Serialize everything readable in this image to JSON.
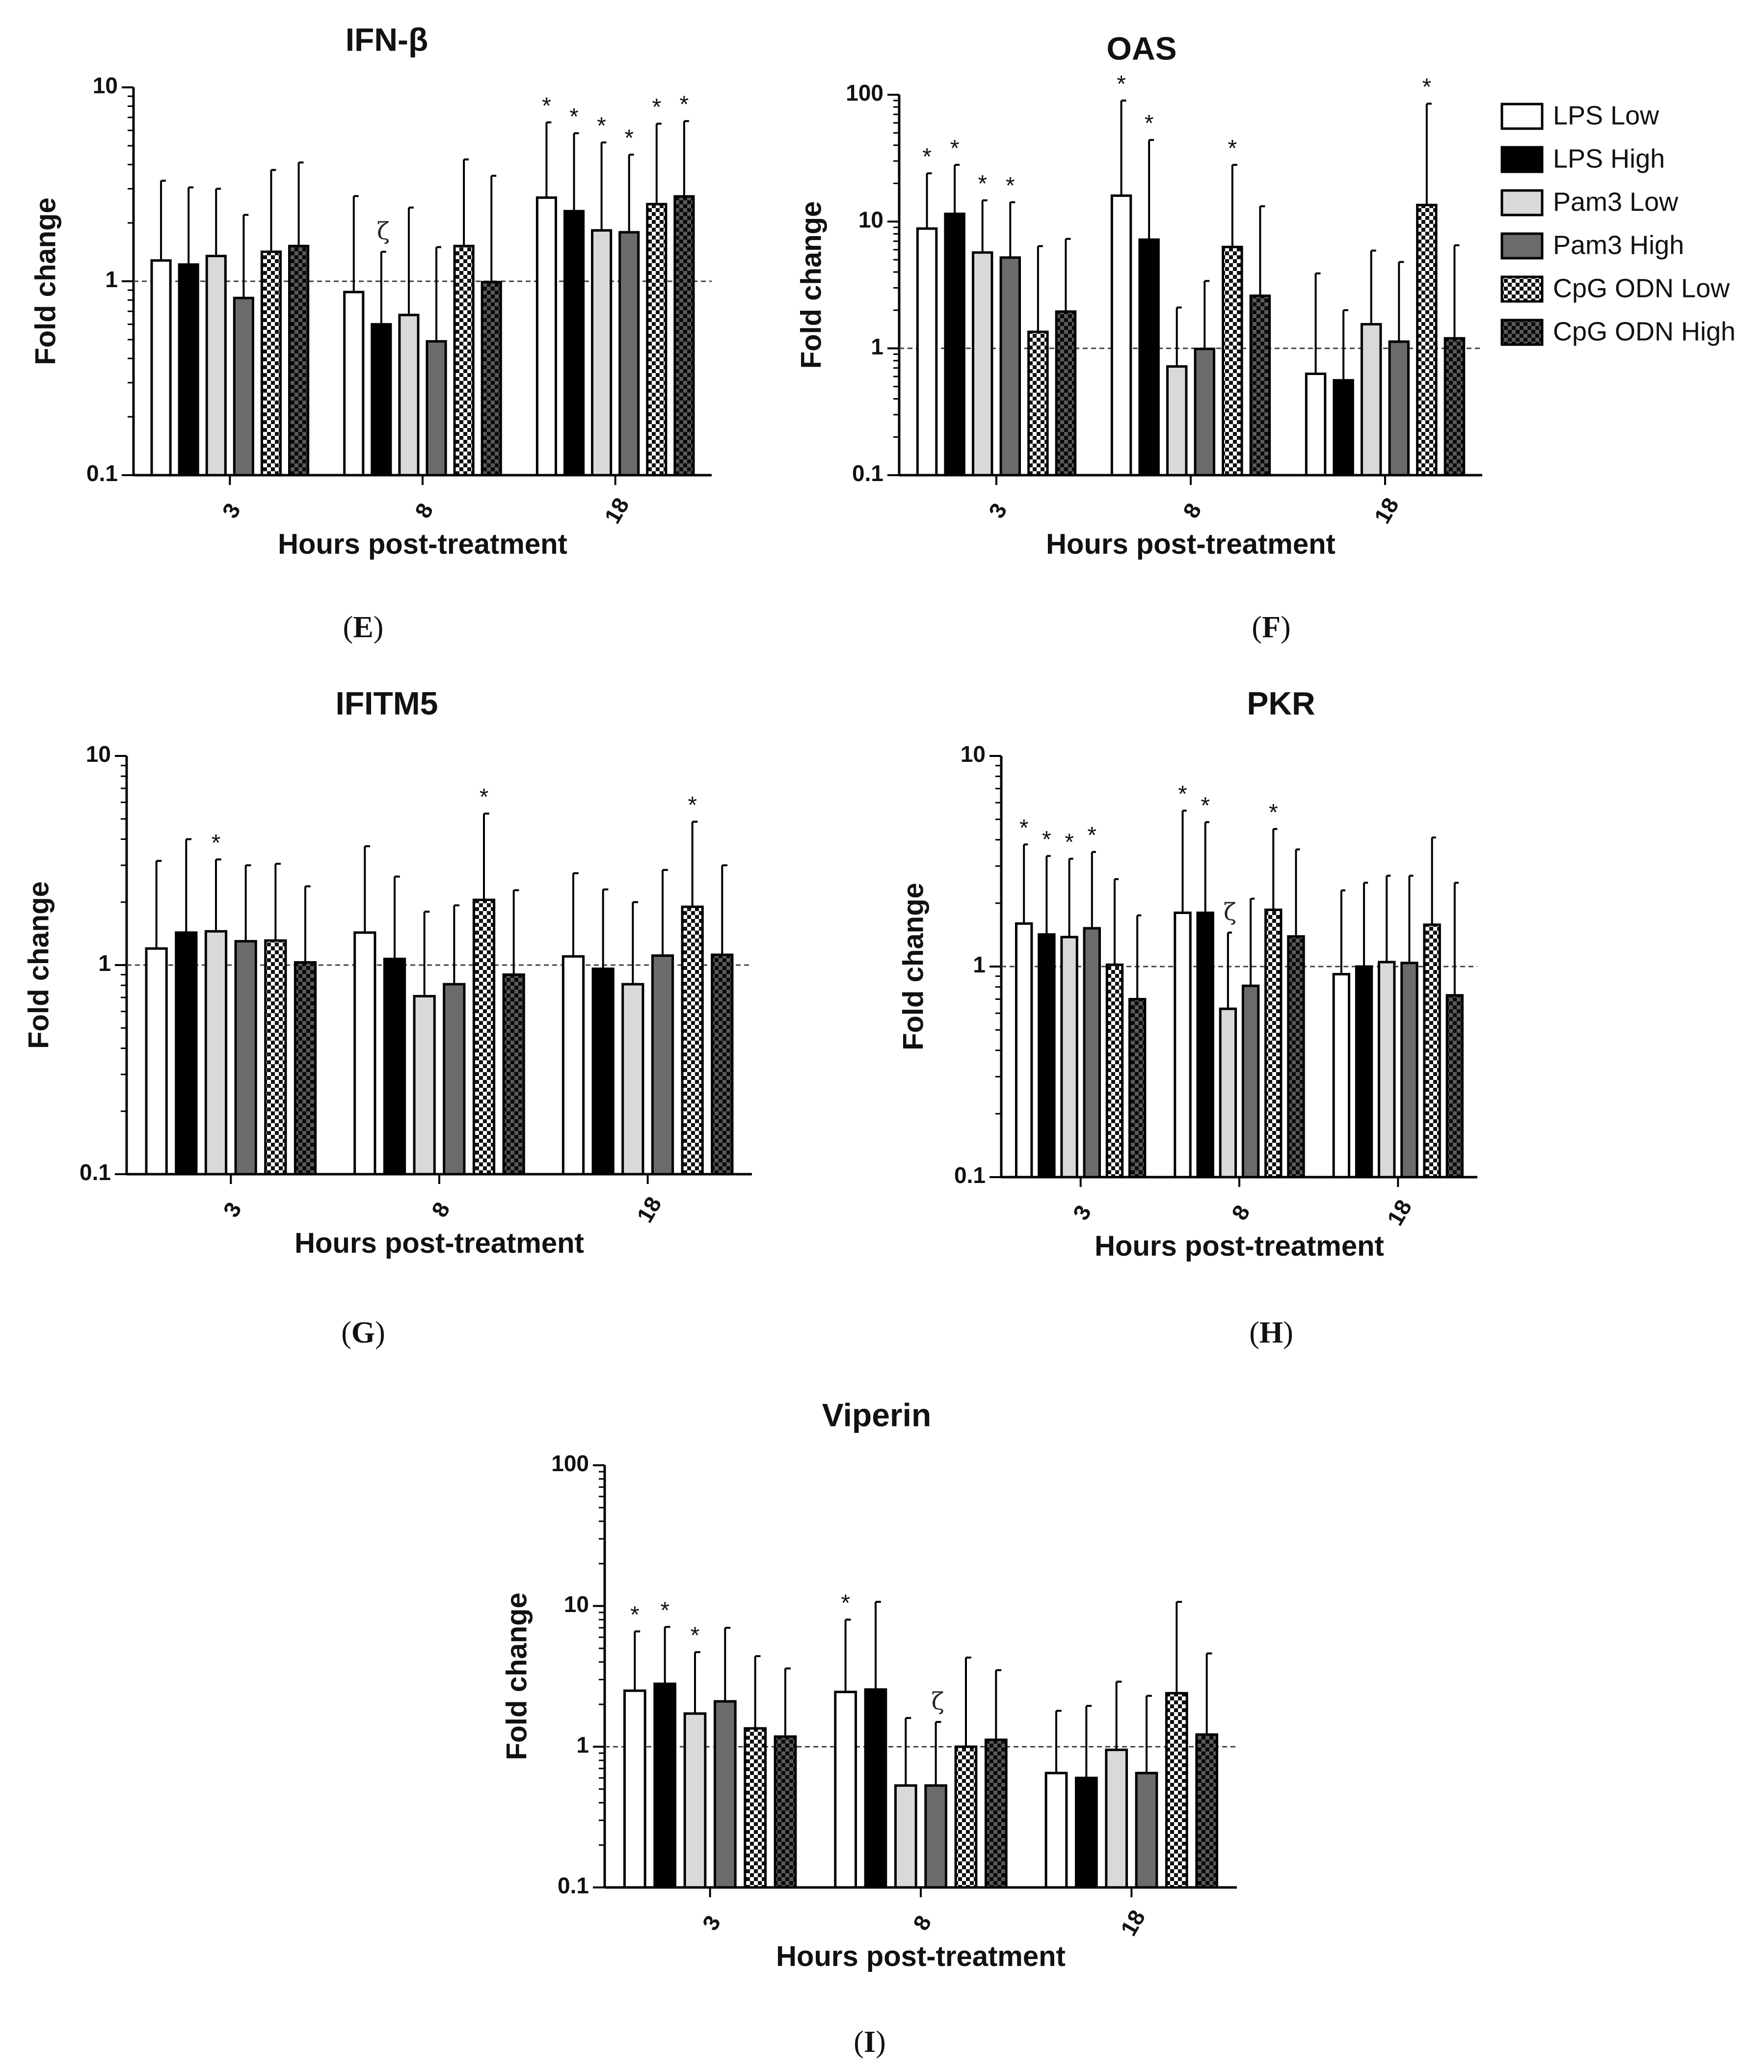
{
  "chart_data": [
    {
      "panel": "E",
      "title": "IFN-β",
      "type": "bar",
      "yscale": "log",
      "ylim": [
        0.1,
        10
      ],
      "yticks": [
        "0.1",
        "1",
        "10"
      ],
      "xlabel": "Hours post-treatment",
      "ylabel": "Fold change",
      "categories": [
        "3",
        "8",
        "18"
      ],
      "series": [
        {
          "name": "LPS Low",
          "values": [
            1.28,
            0.88,
            2.7
          ],
          "errors": [
            3.3,
            2.75,
            6.6
          ],
          "stars": [
            false,
            false,
            true
          ],
          "zeta": [
            false,
            false,
            false
          ]
        },
        {
          "name": "LPS High",
          "values": [
            1.22,
            0.6,
            2.3
          ],
          "errors": [
            3.05,
            1.42,
            5.8
          ],
          "stars": [
            false,
            false,
            true
          ],
          "zeta": [
            false,
            true,
            false
          ]
        },
        {
          "name": "Pam3 Low",
          "values": [
            1.35,
            0.67,
            1.83
          ],
          "errors": [
            3.0,
            2.4,
            5.2
          ],
          "stars": [
            false,
            false,
            true
          ],
          "zeta": [
            false,
            false,
            false
          ]
        },
        {
          "name": "Pam3 High",
          "values": [
            0.82,
            0.49,
            1.79
          ],
          "errors": [
            2.2,
            1.5,
            4.5
          ],
          "stars": [
            false,
            false,
            true
          ],
          "zeta": [
            false,
            false,
            false
          ]
        },
        {
          "name": "CpG ODN Low",
          "values": [
            1.42,
            1.52,
            2.5
          ],
          "errors": [
            3.75,
            4.25,
            6.5
          ],
          "stars": [
            false,
            false,
            true
          ],
          "zeta": [
            false,
            false,
            false
          ]
        },
        {
          "name": "CpG ODN High",
          "values": [
            1.52,
            0.99,
            2.74
          ],
          "errors": [
            4.1,
            3.5,
            6.7
          ],
          "stars": [
            false,
            false,
            true
          ],
          "zeta": [
            false,
            false,
            false
          ]
        }
      ]
    },
    {
      "panel": "F",
      "title": "OAS",
      "type": "bar",
      "yscale": "log",
      "ylim": [
        0.1,
        100
      ],
      "yticks": [
        "0.1",
        "1",
        "10",
        "100"
      ],
      "xlabel": "Hours post-treatment",
      "ylabel": "Fold change",
      "categories": [
        "3",
        "8",
        "18"
      ],
      "series": [
        {
          "name": "LPS Low",
          "values": [
            8.8,
            16.0,
            0.63
          ],
          "errors": [
            24,
            90,
            3.9
          ],
          "stars": [
            true,
            true,
            false
          ],
          "zeta": [
            false,
            false,
            false
          ]
        },
        {
          "name": "LPS High",
          "values": [
            11.5,
            7.2,
            0.56
          ],
          "errors": [
            28,
            44,
            2.0
          ],
          "stars": [
            true,
            true,
            false
          ],
          "zeta": [
            false,
            false,
            false
          ]
        },
        {
          "name": "Pam3 Low",
          "values": [
            5.7,
            0.72,
            1.55
          ],
          "errors": [
            14.7,
            2.1,
            5.9
          ],
          "stars": [
            true,
            false,
            false
          ],
          "zeta": [
            false,
            false,
            false
          ]
        },
        {
          "name": "Pam3 High",
          "values": [
            5.2,
            0.99,
            1.13
          ],
          "errors": [
            14.2,
            3.4,
            4.8
          ],
          "stars": [
            true,
            false,
            false
          ],
          "zeta": [
            false,
            false,
            false
          ]
        },
        {
          "name": "CpG ODN Low",
          "values": [
            1.35,
            6.3,
            13.5
          ],
          "errors": [
            6.4,
            28,
            85
          ],
          "stars": [
            false,
            true,
            true
          ],
          "zeta": [
            false,
            false,
            false
          ]
        },
        {
          "name": "CpG ODN High",
          "values": [
            1.95,
            2.6,
            1.2
          ],
          "errors": [
            7.3,
            13.2,
            6.5
          ],
          "stars": [
            false,
            false,
            false
          ],
          "zeta": [
            false,
            false,
            false
          ]
        }
      ]
    },
    {
      "panel": "G",
      "title": "IFITM5",
      "type": "bar",
      "yscale": "log",
      "ylim": [
        0.1,
        10
      ],
      "yticks": [
        "0.1",
        "1",
        "10"
      ],
      "xlabel": "Hours post-treatment",
      "ylabel": "Fold change",
      "categories": [
        "3",
        "8",
        "18"
      ],
      "series": [
        {
          "name": "LPS Low",
          "values": [
            1.2,
            1.43,
            1.1
          ],
          "errors": [
            3.15,
            3.7,
            2.75
          ],
          "stars": [
            false,
            false,
            false
          ],
          "zeta": [
            false,
            false,
            false
          ]
        },
        {
          "name": "LPS High",
          "values": [
            1.43,
            1.07,
            0.96
          ],
          "errors": [
            4.0,
            2.65,
            2.3
          ],
          "stars": [
            false,
            false,
            false
          ],
          "zeta": [
            false,
            false,
            false
          ]
        },
        {
          "name": "Pam3 Low",
          "values": [
            1.45,
            0.71,
            0.81
          ],
          "errors": [
            3.2,
            1.8,
            2.0
          ],
          "stars": [
            true,
            false,
            false
          ],
          "zeta": [
            false,
            false,
            false
          ]
        },
        {
          "name": "Pam3 High",
          "values": [
            1.3,
            0.81,
            1.11
          ],
          "errors": [
            3.0,
            1.93,
            2.85
          ],
          "stars": [
            false,
            false,
            false
          ],
          "zeta": [
            false,
            false,
            false
          ]
        },
        {
          "name": "CpG ODN Low",
          "values": [
            1.31,
            2.05,
            1.9
          ],
          "errors": [
            3.05,
            5.3,
            4.85
          ],
          "stars": [
            false,
            true,
            true
          ],
          "zeta": [
            false,
            false,
            false
          ]
        },
        {
          "name": "CpG ODN High",
          "values": [
            1.03,
            0.9,
            1.12
          ],
          "errors": [
            2.38,
            2.28,
            3.0
          ],
          "stars": [
            false,
            false,
            false
          ],
          "zeta": [
            false,
            false,
            false
          ]
        }
      ]
    },
    {
      "panel": "H",
      "title": "PKR",
      "type": "bar",
      "yscale": "log",
      "ylim": [
        0.1,
        10
      ],
      "yticks": [
        "0.1",
        "1",
        "10"
      ],
      "xlabel": "Hours post-treatment",
      "ylabel": "Fold change",
      "categories": [
        "3",
        "8",
        "18"
      ],
      "series": [
        {
          "name": "LPS Low",
          "values": [
            1.6,
            1.8,
            0.92
          ],
          "errors": [
            3.8,
            5.5,
            2.3
          ],
          "stars": [
            true,
            true,
            false
          ],
          "zeta": [
            false,
            false,
            false
          ]
        },
        {
          "name": "LPS High",
          "values": [
            1.42,
            1.8,
            1.0
          ],
          "errors": [
            3.35,
            4.85,
            2.5
          ],
          "stars": [
            true,
            true,
            false
          ],
          "zeta": [
            false,
            false,
            false
          ]
        },
        {
          "name": "Pam3 Low",
          "values": [
            1.38,
            0.63,
            1.05
          ],
          "errors": [
            3.25,
            1.45,
            2.7
          ],
          "stars": [
            true,
            false,
            false
          ],
          "zeta": [
            false,
            true,
            false
          ]
        },
        {
          "name": "Pam3 High",
          "values": [
            1.52,
            0.81,
            1.04
          ],
          "errors": [
            3.5,
            2.1,
            2.7
          ],
          "stars": [
            true,
            false,
            false
          ],
          "zeta": [
            false,
            false,
            false
          ]
        },
        {
          "name": "CpG ODN Low",
          "values": [
            1.02,
            1.86,
            1.58
          ],
          "errors": [
            2.6,
            4.5,
            4.1
          ],
          "stars": [
            false,
            true,
            false
          ],
          "zeta": [
            false,
            false,
            false
          ]
        },
        {
          "name": "CpG ODN High",
          "values": [
            0.7,
            1.39,
            0.73
          ],
          "errors": [
            1.75,
            3.6,
            2.5
          ],
          "stars": [
            false,
            false,
            false
          ],
          "zeta": [
            false,
            false,
            false
          ]
        }
      ]
    },
    {
      "panel": "I",
      "title": "Viperin",
      "type": "bar",
      "yscale": "log",
      "ylim": [
        0.1,
        100
      ],
      "yticks": [
        "0.1",
        "1",
        "10",
        "100"
      ],
      "xlabel": "Hours post-treatment",
      "ylabel": "Fold change",
      "categories": [
        "3",
        "8",
        "18"
      ],
      "series": [
        {
          "name": "LPS Low",
          "values": [
            2.5,
            2.45,
            0.65
          ],
          "errors": [
            6.6,
            8.0,
            1.8
          ],
          "stars": [
            true,
            true,
            false
          ],
          "zeta": [
            false,
            false,
            false
          ]
        },
        {
          "name": "LPS High",
          "values": [
            2.8,
            2.55,
            0.6
          ],
          "errors": [
            7.1,
            10.7,
            1.95
          ],
          "stars": [
            true,
            false,
            false
          ],
          "zeta": [
            false,
            false,
            false
          ]
        },
        {
          "name": "Pam3 Low",
          "values": [
            1.72,
            0.53,
            0.95
          ],
          "errors": [
            4.7,
            1.6,
            2.9
          ],
          "stars": [
            true,
            false,
            false
          ],
          "zeta": [
            false,
            false,
            false
          ]
        },
        {
          "name": "Pam3 High",
          "values": [
            2.1,
            0.53,
            0.65
          ],
          "errors": [
            7.0,
            1.5,
            2.3
          ],
          "stars": [
            false,
            false,
            false
          ],
          "zeta": [
            false,
            true,
            false
          ]
        },
        {
          "name": "CpG ODN Low",
          "values": [
            1.35,
            1.0,
            2.4
          ],
          "errors": [
            4.4,
            4.3,
            10.7
          ],
          "stars": [
            false,
            false,
            false
          ],
          "zeta": [
            false,
            false,
            false
          ]
        },
        {
          "name": "CpG ODN High",
          "values": [
            1.18,
            1.12,
            1.22
          ],
          "errors": [
            3.6,
            3.5,
            4.6
          ],
          "stars": [
            false,
            false,
            false
          ],
          "zeta": [
            false,
            false,
            false
          ]
        }
      ]
    }
  ],
  "legend": {
    "items": [
      {
        "label": "LPS Low",
        "pattern": "white"
      },
      {
        "label": "LPS High",
        "pattern": "black"
      },
      {
        "label": "Pam3 Low",
        "pattern": "lightgray"
      },
      {
        "label": "Pam3 High",
        "pattern": "darkgray"
      },
      {
        "label": "CpG ODN Low",
        "pattern": "checker-light"
      },
      {
        "label": "CpG ODN High",
        "pattern": "checker-dark"
      }
    ]
  },
  "labels": {
    "star": "*",
    "zeta": "ζ",
    "panel_open": "(",
    "panel_close": ")"
  },
  "colors": {
    "white": "#ffffff",
    "black": "#000000",
    "lightgray": "#d9d9d9",
    "darkgray": "#6b6b6b",
    "checker_light_a": "#ffffff",
    "checker_light_b": "#111111",
    "checker_dark_a": "#5a5a5a",
    "checker_dark_b": "#0a0a0a",
    "axis": "#000000",
    "refline": "#444444"
  }
}
